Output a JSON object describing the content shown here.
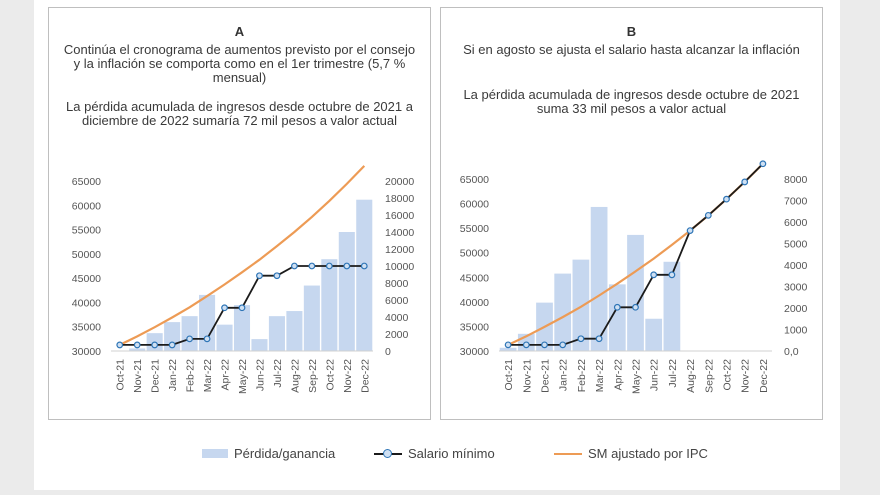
{
  "panels": [
    {
      "id": "A",
      "title": "A",
      "text1": "Continúa el cronograma de aumentos previsto por el consejo y la inflación se comporta como en el 1er trimestre (5,7 % mensual)",
      "text2": "La pérdida acumulada de ingresos desde octubre de 2021 a diciembre de 2022 sumaría 72 mil pesos a valor actual"
    },
    {
      "id": "B",
      "title": "B",
      "text1": "Si en agosto se ajusta el salario hasta alcanzar la inflación",
      "text2": "La pérdida acumulada de ingresos desde octubre de 2021 suma 33 mil pesos a valor actual"
    }
  ],
  "legend": {
    "bar_label": "Pérdida/ganancia",
    "salario_label": "Salario mínimo",
    "sm_label": "SM ajustado por IPC"
  },
  "colors": {
    "bar": "#c6d7ef",
    "salario_line": "#1b1b1b",
    "salario_marker": "#2e75b6",
    "sm_line": "#ed9b55"
  },
  "chart_data": [
    {
      "type": "bar+line",
      "panel": "A",
      "categories": [
        "Oct-21",
        "Nov-21",
        "Dec-21",
        "Jan-22",
        "Feb-22",
        "Mar-22",
        "Apr-22",
        "May-22",
        "Jun-22",
        "Jul-22",
        "Aug-22",
        "Sep-22",
        "Oct-22",
        "Nov-22",
        "Dec-22"
      ],
      "left_axis": {
        "range": [
          30000,
          65000
        ],
        "ticks": [
          "65000",
          "60000",
          "55000",
          "50000",
          "45000",
          "40000",
          "35000",
          "30000"
        ],
        "tick_values": [
          65000,
          60000,
          55000,
          50000,
          45000,
          40000,
          35000,
          30000
        ]
      },
      "right_axis": {
        "range": [
          0,
          20000
        ],
        "ticks": [
          "20000",
          "18000",
          "16000",
          "14000",
          "12000",
          "10000",
          "8000",
          "6000",
          "4000",
          "2000",
          "0"
        ],
        "tick_values": [
          20000,
          18000,
          16000,
          14000,
          12000,
          10000,
          8000,
          6000,
          4000,
          2000,
          0
        ]
      },
      "series": [
        {
          "name": "Pérdida/ganancia",
          "kind": "bar",
          "axis": "right",
          "values": [
            0,
            300,
            2100,
            3400,
            4100,
            6600,
            3100,
            5400,
            1400,
            4100,
            4700,
            7700,
            10800,
            14000,
            17800
          ]
        },
        {
          "name": "Salario mínimo",
          "kind": "line-marker",
          "axis": "left",
          "values": [
            31250,
            31250,
            31250,
            31250,
            32500,
            32500,
            38900,
            38900,
            45500,
            45500,
            47500,
            47500,
            47500,
            47500,
            47500
          ]
        },
        {
          "name": "SM ajustado por IPC",
          "kind": "line",
          "axis": "left",
          "values": [
            31250,
            33000,
            34900,
            36900,
            39000,
            41300,
            43700,
            46200,
            48800,
            51600,
            54500,
            57600,
            60900,
            64400,
            68100
          ]
        }
      ]
    },
    {
      "type": "bar+line",
      "panel": "B",
      "categories": [
        "Oct-21",
        "Nov-21",
        "Dec-21",
        "Jan-22",
        "Feb-22",
        "Mar-22",
        "Apr-22",
        "May-22",
        "Jun-22",
        "Jul-22",
        "Aug-22",
        "Sep-22",
        "Oct-22",
        "Nov-22",
        "Dec-22"
      ],
      "left_axis": {
        "range": [
          30000,
          65000
        ],
        "ticks": [
          "65000",
          "60000",
          "55000",
          "50000",
          "45000",
          "40000",
          "35000",
          "30000"
        ],
        "tick_values": [
          65000,
          60000,
          55000,
          50000,
          45000,
          40000,
          35000,
          30000
        ]
      },
      "right_axis": {
        "range": [
          0,
          8000
        ],
        "ticks": [
          "8000",
          "7000",
          "6000",
          "5000",
          "4000",
          "3000",
          "2000",
          "1000",
          "0,0"
        ],
        "tick_values": [
          8000,
          7000,
          6000,
          5000,
          4000,
          3000,
          2000,
          1000,
          0
        ]
      },
      "series": [
        {
          "name": "Pérdida/ganancia",
          "kind": "bar",
          "axis": "right",
          "values": [
            150,
            800,
            2250,
            3600,
            4250,
            6700,
            3100,
            5400,
            1500,
            4150,
            0,
            0,
            0,
            0,
            0
          ]
        },
        {
          "name": "Salario mínimo",
          "kind": "line-marker",
          "axis": "left",
          "values": [
            31250,
            31250,
            31250,
            31250,
            32500,
            32500,
            38900,
            38900,
            45500,
            45500,
            54500,
            57600,
            60900,
            64400,
            68100
          ]
        },
        {
          "name": "SM ajustado por IPC",
          "kind": "line",
          "axis": "left",
          "values": [
            31250,
            33000,
            34900,
            36900,
            39000,
            41300,
            43700,
            46200,
            48800,
            51600,
            54500,
            57600,
            60900,
            64400,
            68100
          ]
        }
      ]
    }
  ]
}
